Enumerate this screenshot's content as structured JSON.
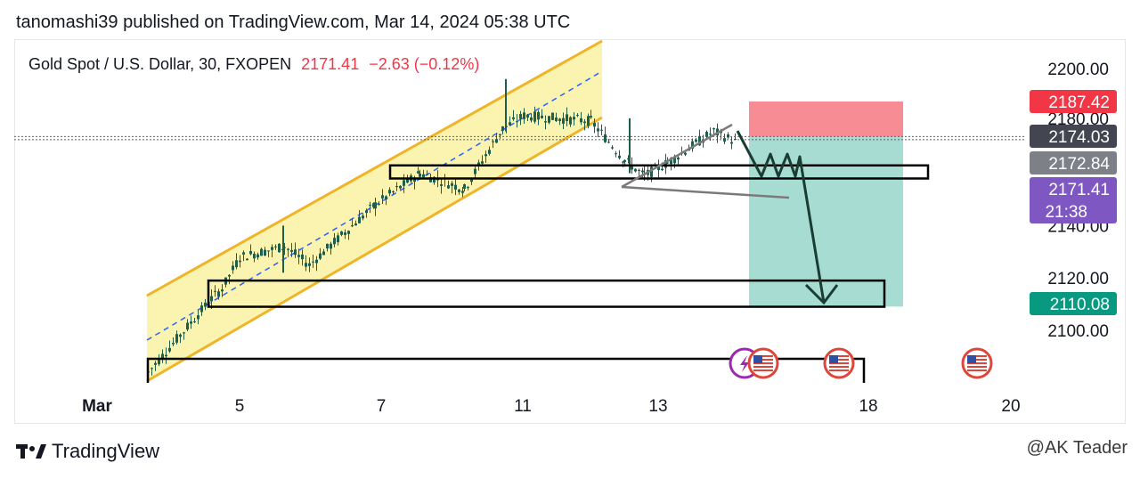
{
  "header": {
    "publisher_line": "tanomashi39 published on TradingView.com, Mar 14, 2024 05:38 UTC"
  },
  "legend": {
    "symbol": "Gold Spot / U.S. Dollar, 30, FXOPEN",
    "price": "2171.41",
    "change": "−2.63 (−0.12%)"
  },
  "footer": {
    "brand": "TradingView",
    "watermark": "@AK Teader"
  },
  "colors": {
    "channel_fill": "#fbf3b0",
    "channel_line": "#f0b429",
    "mid_line": "#2962ff",
    "candle": "#1f5f4a",
    "stop_zone": "#f88c95",
    "target_zone": "#a7dcd3",
    "label_red": "#f23645",
    "label_dark": "#434651",
    "label_gray": "#7e8087",
    "label_purple": "#7e57c2",
    "label_teal": "#089981"
  },
  "chart_data": {
    "type": "candlestick",
    "title": "Gold Spot / U.S. Dollar, 30, FXOPEN",
    "x_ticks": [
      "Mar",
      "5",
      "7",
      "11",
      "13",
      "18",
      "20"
    ],
    "y_ticks": [
      "2200.00",
      "2180.00",
      "2140.00",
      "2120.00",
      "2100.00"
    ],
    "y_range": [
      2084,
      2215
    ],
    "approx_close_path": [
      {
        "x": "Mar 4",
        "y": 2084
      },
      {
        "x": "Mar 4",
        "y": 2112
      },
      {
        "x": "Mar 5",
        "y": 2116
      },
      {
        "x": "Mar 5",
        "y": 2128
      },
      {
        "x": "Mar 6",
        "y": 2132
      },
      {
        "x": "Mar 6",
        "y": 2125
      },
      {
        "x": "Mar 7",
        "y": 2148
      },
      {
        "x": "Mar 8",
        "y": 2160
      },
      {
        "x": "Mar 8",
        "y": 2154
      },
      {
        "x": "Mar 11",
        "y": 2177
      },
      {
        "x": "Mar 11",
        "y": 2182
      },
      {
        "x": "Mar 12",
        "y": 2180
      },
      {
        "x": "Mar 12",
        "y": 2165
      },
      {
        "x": "Mar 13",
        "y": 2159
      },
      {
        "x": "Mar 13",
        "y": 2164
      },
      {
        "x": "Mar 14",
        "y": 2176
      },
      {
        "x": "Mar 14",
        "y": 2171.41
      }
    ],
    "price_labels": [
      {
        "text": "2187.42",
        "y": 2187.42,
        "color": "#f23645"
      },
      {
        "text": "2174.03",
        "y": 2174.03,
        "color": "#434651"
      },
      {
        "text": "2172.84",
        "y": 2172.84,
        "color": "#7e8087"
      },
      {
        "text": "2171.41",
        "sub": "21:38",
        "y": 2171.41,
        "color": "#7e57c2"
      },
      {
        "text": "2110.08",
        "y": 2110.08,
        "color": "#089981"
      }
    ],
    "position_tool": {
      "entry": 2174.03,
      "stop": 2187.42,
      "target": 2110.08
    },
    "zones": [
      {
        "name": "resistance-box",
        "y_top": 2163,
        "y_bottom": 2158
      },
      {
        "name": "support-box",
        "y_top": 2119,
        "y_bottom": 2109
      }
    ],
    "legend_position": "top-left"
  }
}
